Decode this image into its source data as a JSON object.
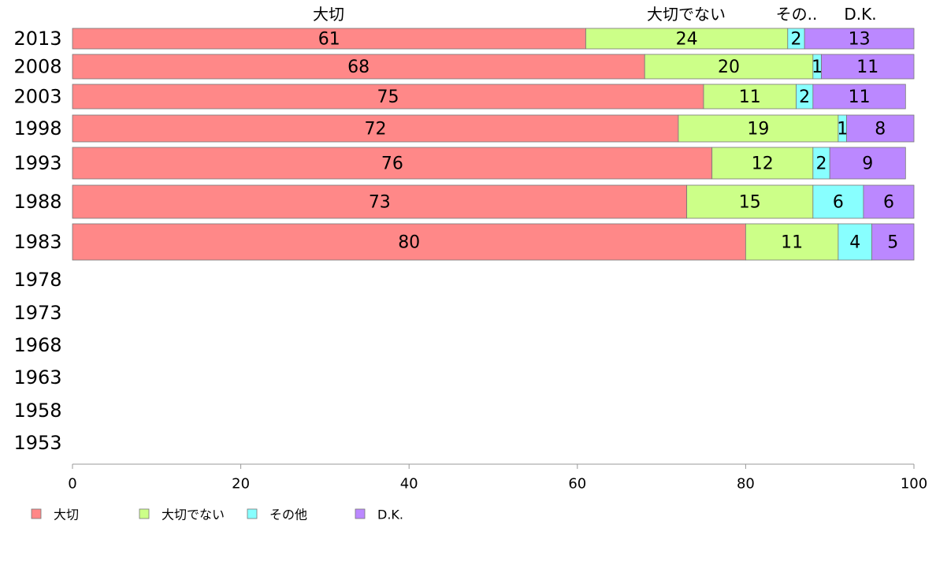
{
  "chart_data": {
    "type": "bar",
    "orientation": "horizontal",
    "stacked": true,
    "title": "",
    "xlabel": "",
    "ylabel": "",
    "xlim": [
      0,
      100
    ],
    "x_ticks": [
      0,
      20,
      40,
      60,
      80,
      100
    ],
    "grid": false,
    "legend_position": "bottom-left",
    "categories": [
      "2013",
      "2008",
      "2003",
      "1998",
      "1993",
      "1988",
      "1983",
      "1978",
      "1973",
      "1968",
      "1963",
      "1958",
      "1953"
    ],
    "series": [
      {
        "name": "大切",
        "header": "大切",
        "color": "#ff8888",
        "values": [
          61,
          68,
          75,
          72,
          76,
          73,
          80,
          null,
          null,
          null,
          null,
          null,
          null
        ]
      },
      {
        "name": "大切でない",
        "header": "大切でない",
        "color": "#ccff88",
        "values": [
          24,
          20,
          11,
          19,
          12,
          15,
          11,
          null,
          null,
          null,
          null,
          null,
          null
        ]
      },
      {
        "name": "その他",
        "header": "その..",
        "color": "#88ffff",
        "values": [
          2,
          1,
          2,
          1,
          2,
          6,
          4,
          null,
          null,
          null,
          null,
          null,
          null
        ]
      },
      {
        "name": "D.K.",
        "header": "D.K.",
        "color": "#bb88ff",
        "values": [
          13,
          11,
          11,
          8,
          9,
          6,
          5,
          null,
          null,
          null,
          null,
          null,
          null
        ]
      }
    ]
  }
}
